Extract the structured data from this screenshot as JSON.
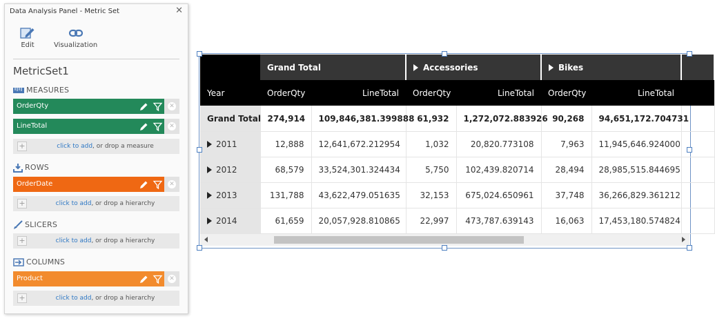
{
  "panel": {
    "title": "Data Analysis Panel - Metric Set",
    "toolbar": {
      "edit_label": "Edit",
      "visualization_label": "Visualization"
    },
    "metric_set_name": "MetricSet1",
    "measures": {
      "heading": "MEASURES",
      "items": [
        {
          "label": "OrderQty"
        },
        {
          "label": "LineTotal"
        }
      ],
      "drop_link": "click to add",
      "drop_text": ", or drop a measure"
    },
    "rows": {
      "heading": "ROWS",
      "items": [
        {
          "label": "OrderDate"
        }
      ],
      "drop_link": "click to add",
      "drop_text": ", or drop a hierarchy"
    },
    "slicers": {
      "heading": "SLICERS",
      "drop_link": "click to add",
      "drop_text": ", or drop a hierarchy"
    },
    "columns": {
      "heading": "COLUMNS",
      "items": [
        {
          "label": "Product"
        }
      ],
      "drop_link": "click to add",
      "drop_text": ", or drop a hierarchy"
    }
  },
  "pivot": {
    "row_header": "Year",
    "column_groups": [
      "Grand Total",
      "Accessories",
      "Bikes"
    ],
    "measure_headers": [
      "OrderQty",
      "LineTotal",
      "OrderQty",
      "LineTotal",
      "OrderQty",
      "LineTotal"
    ],
    "grand_total": {
      "label": "Grand Total",
      "values": [
        "274,914",
        "109,846,381.399888",
        "61,932",
        "1,272,072.883926",
        "90,268",
        "94,651,172.704731"
      ]
    },
    "rows": [
      {
        "label": "2011",
        "values": [
          "12,888",
          "12,641,672.212954",
          "1,032",
          "20,820.773108",
          "7,963",
          "11,945,646.924000"
        ]
      },
      {
        "label": "2012",
        "values": [
          "68,579",
          "33,524,301.324434",
          "5,750",
          "102,439.820714",
          "28,494",
          "28,985,515.844695"
        ]
      },
      {
        "label": "2013",
        "values": [
          "131,788",
          "43,622,479.051635",
          "32,153",
          "675,024.650961",
          "37,748",
          "36,266,829.361212"
        ]
      },
      {
        "label": "2014",
        "values": [
          "61,659",
          "20,057,928.810865",
          "22,997",
          "473,787.639143",
          "16,063",
          "17,453,180.574824"
        ]
      }
    ]
  },
  "colors": {
    "measure_pill": "#23895a",
    "row_pill": "#ef6813",
    "column_pill": "#f28b2d",
    "header_dark": "#363636",
    "header_black": "#000000",
    "link": "#2f78c4",
    "selection_frame": "#6d92c5"
  },
  "icons": {
    "edit": "pencil-edit-icon",
    "visualization": "chain-link-icon",
    "measures": "ruler-icon",
    "rows": "tray-down-icon",
    "slicers": "brush-icon",
    "columns": "columns-arrow-icon",
    "pill_edit": "pencil-icon",
    "pill_filter": "funnel-icon",
    "pill_remove": "close-circle-icon"
  }
}
